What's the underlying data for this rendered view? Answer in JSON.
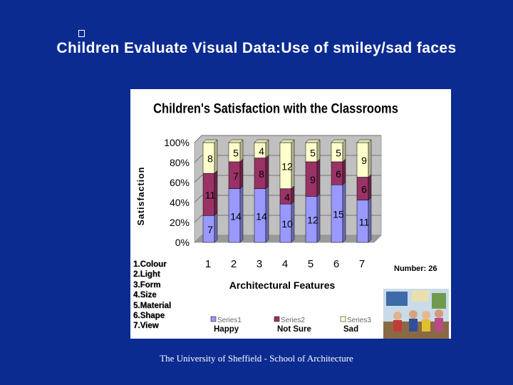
{
  "slide": {
    "title": "Children Evaluate Visual Data:Use of smiley/sad faces",
    "footer": "The University of Sheffield - School of Architecture",
    "number_label": "Number: 26",
    "features": [
      "1.Colour",
      "2.Light",
      "3.Form",
      "4.Size",
      "5.Material",
      "6.Shape",
      "7.View"
    ]
  },
  "chart_data": {
    "type": "bar",
    "stacked": "percent",
    "title": "Children's Satisfaction with the Classrooms",
    "xlabel": "Architectural Features",
    "ylabel": "Satisfaction",
    "categories": [
      "1",
      "2",
      "3",
      "4",
      "5",
      "6",
      "7"
    ],
    "yticks": [
      "0%",
      "20%",
      "40%",
      "60%",
      "80%",
      "100%"
    ],
    "ylim": [
      0,
      100
    ],
    "legend_position": "bottom",
    "series": [
      {
        "name": "Series1",
        "label": "Happy",
        "color": "#9999ff",
        "values": [
          7,
          14,
          14,
          10,
          12,
          15,
          11
        ]
      },
      {
        "name": "Series2",
        "label": "Not Sure",
        "color": "#993366",
        "values": [
          11,
          7,
          8,
          4,
          9,
          6,
          6
        ]
      },
      {
        "name": "Series3",
        "label": "Sad",
        "color": "#ffffcc",
        "values": [
          8,
          5,
          4,
          12,
          5,
          5,
          9
        ]
      }
    ]
  }
}
